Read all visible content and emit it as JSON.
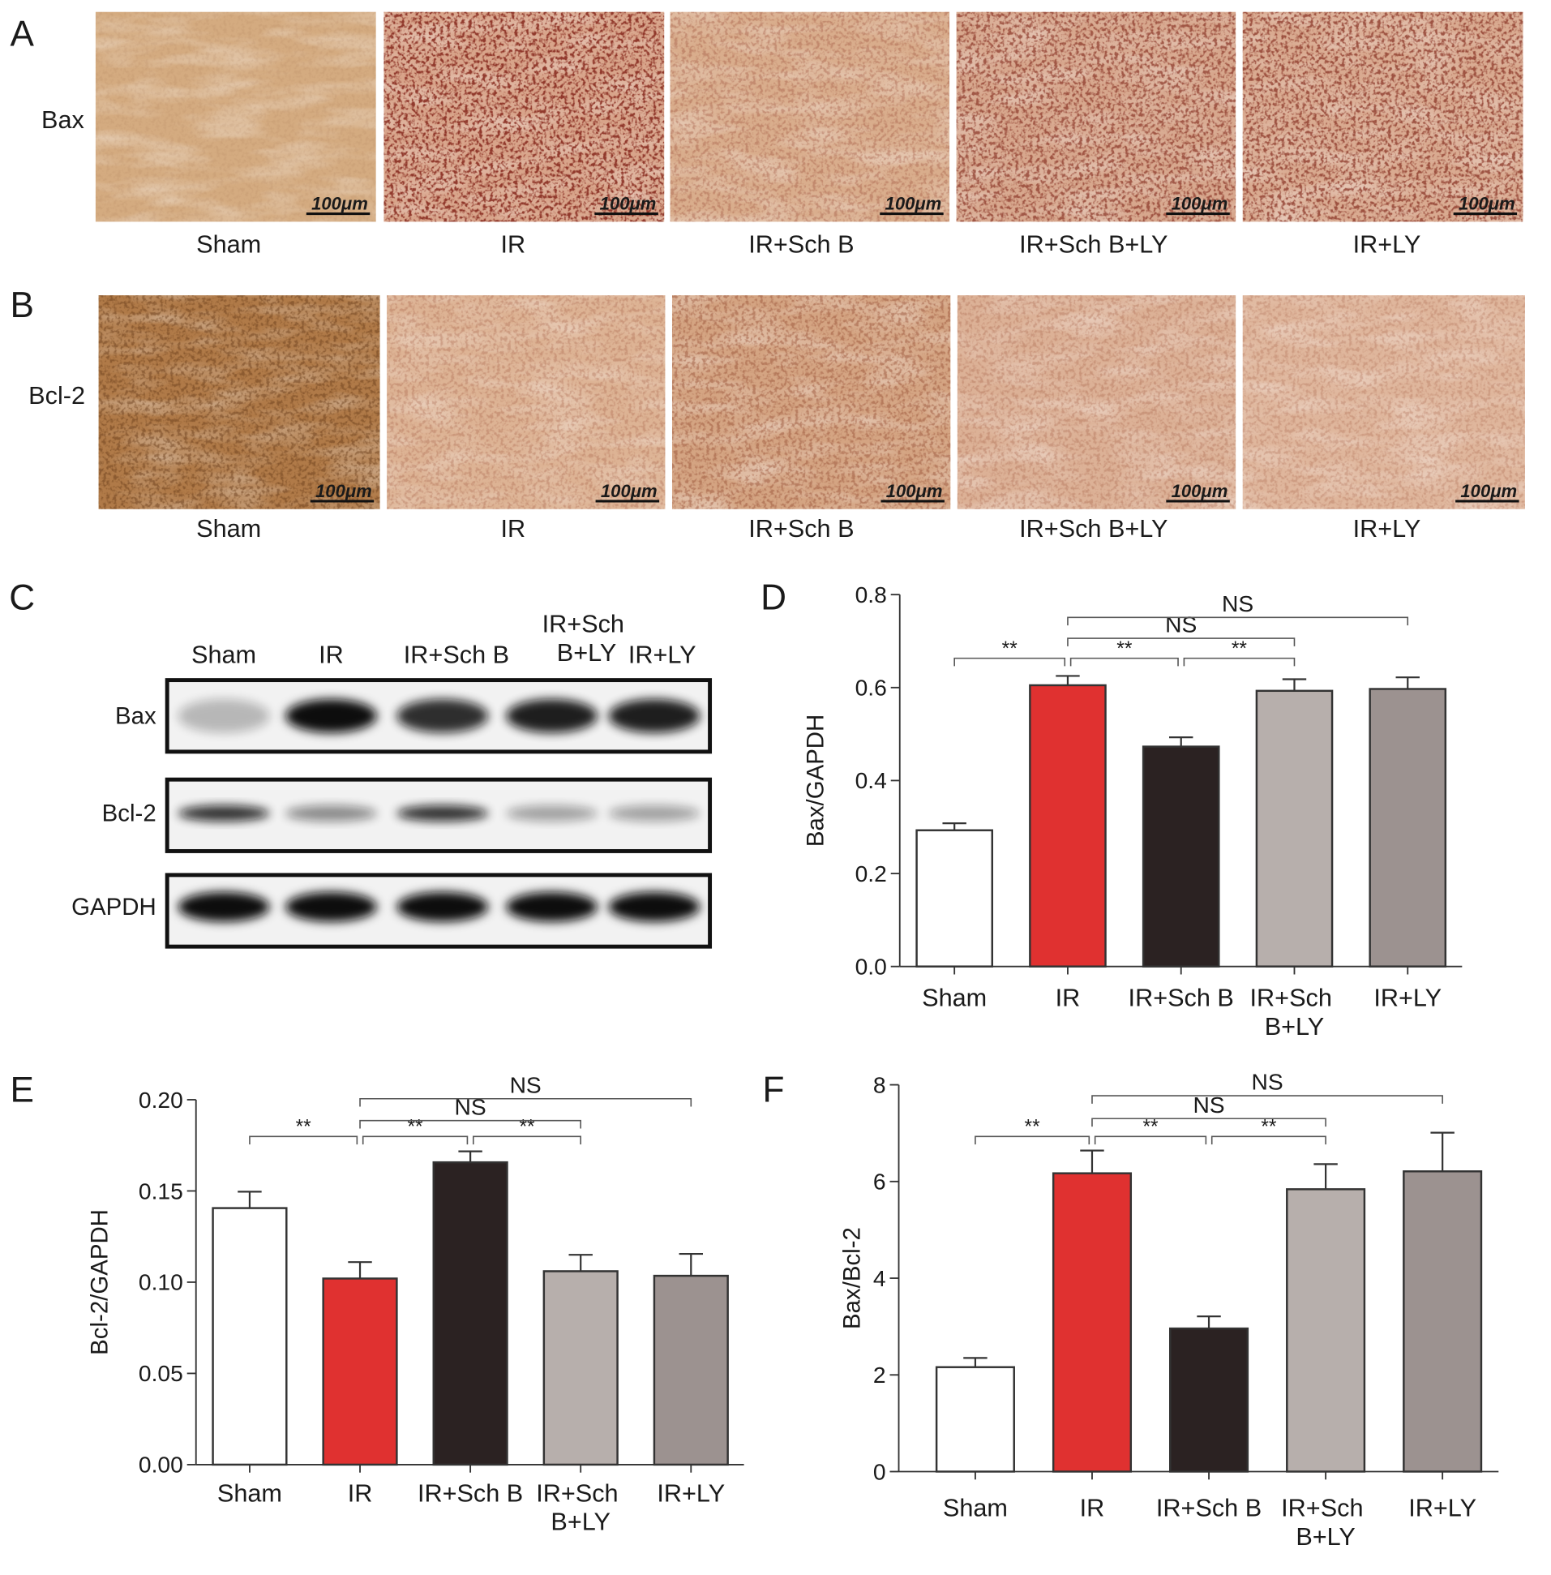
{
  "histology": [
    {
      "panel": "A",
      "marker": "Bax",
      "groups": [
        "Sham",
        "IR",
        "IR+Sch B",
        "IR+Sch B+LY",
        "IR+LY"
      ]
    },
    {
      "panel": "B",
      "marker": "Bcl-2",
      "groups": [
        "Sham",
        "IR",
        "IR+Sch B",
        "IR+Sch B+LY",
        "IR+LY"
      ]
    }
  ],
  "scale_bar": "100μm",
  "blot": {
    "panel": "C",
    "lanes": [
      "Sham",
      "IR",
      "IR+Sch B",
      "IR+Sch\nB+LY",
      "IR+LY"
    ],
    "rows": [
      "Bax",
      "Bcl-2",
      "GAPDH"
    ]
  },
  "chart_data": [
    {
      "type": "bar",
      "panel": "D",
      "ylabel": "Bax/GAPDH",
      "categories": [
        "Sham",
        "IR",
        "IR+Sch B",
        "IR+Sch\nB+LY",
        "IR+LY"
      ],
      "values": [
        0.293,
        0.605,
        0.473,
        0.593,
        0.597
      ],
      "errors": [
        0.015,
        0.02,
        0.02,
        0.025,
        0.025
      ],
      "colors": [
        "#ffffff",
        "#e03130",
        "#2b2222",
        "#b7afac",
        "#9c9290"
      ],
      "ylim": [
        0,
        0.8
      ],
      "yticks": [
        {
          "value": 0,
          "label": "0.0"
        },
        0.2,
        0.4,
        0.6,
        0.8
      ],
      "annotations": [
        "**",
        "**",
        "**",
        "NS",
        "NS"
      ]
    },
    {
      "type": "bar",
      "panel": "E",
      "ylabel": "Bcl-2/GAPDH",
      "categories": [
        "Sham",
        "IR",
        "IR+Sch B",
        "IR+Sch\nB+LY",
        "IR+LY"
      ],
      "values": [
        0.1406,
        0.102,
        0.1657,
        0.106,
        0.1035
      ],
      "errors": [
        0.009,
        0.009,
        0.006,
        0.009,
        0.012
      ],
      "colors": [
        "#ffffff",
        "#e03130",
        "#2b2222",
        "#b7afac",
        "#9c9290"
      ],
      "ylim": [
        0,
        0.2
      ],
      "yticks": [
        {
          "value": 0,
          "label": "0.00"
        },
        0.05,
        {
          "value": 0.1,
          "label": "0.10"
        },
        0.15,
        {
          "value": 0.2,
          "label": "0.20"
        }
      ],
      "annotations": [
        "**",
        "**",
        "**",
        "NS",
        "NS"
      ]
    },
    {
      "type": "bar",
      "panel": "F",
      "ylabel": "Bax/Bcl-2",
      "categories": [
        "Sham",
        "IR",
        "IR+Sch B",
        "IR+Sch\nB+LY",
        "IR+LY"
      ],
      "values": [
        2.16,
        6.17,
        2.96,
        5.84,
        6.21
      ],
      "errors": [
        0.19,
        0.47,
        0.25,
        0.52,
        0.8
      ],
      "colors": [
        "#ffffff",
        "#e03130",
        "#2b2222",
        "#b7afac",
        "#9c9290"
      ],
      "ylim": [
        0,
        8
      ],
      "yticks": [
        0,
        2,
        4,
        6,
        8
      ],
      "annotations": [
        "**",
        "**",
        "**",
        "NS",
        "NS"
      ]
    }
  ]
}
